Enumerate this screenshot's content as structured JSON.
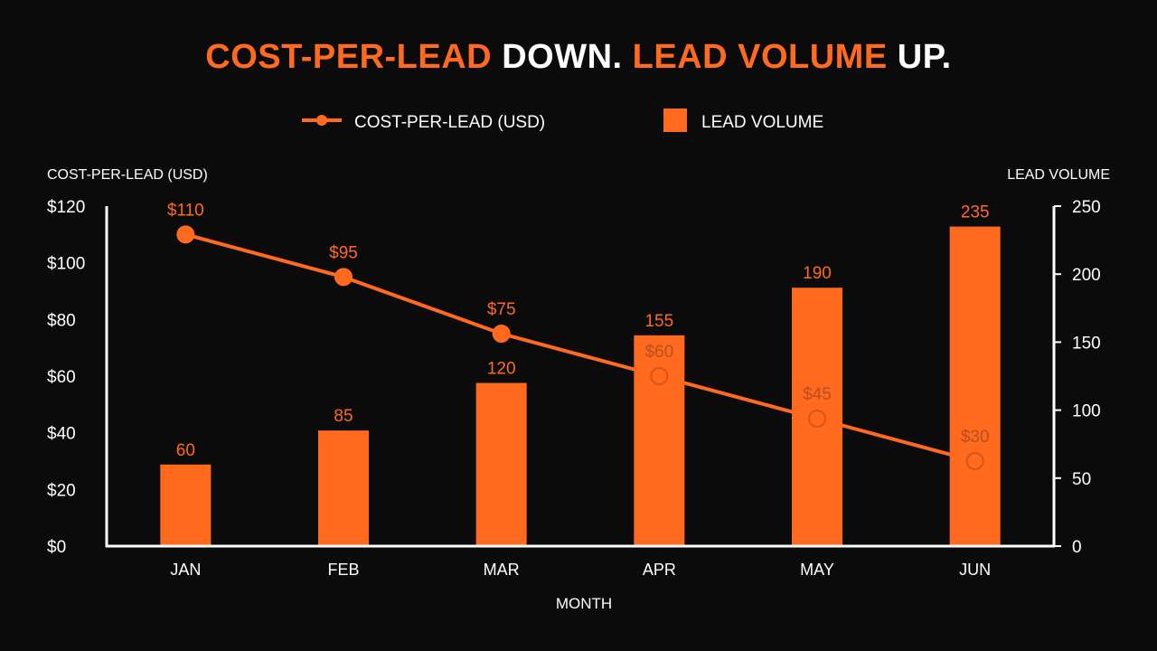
{
  "title": {
    "part1": "COST-PER-LEAD",
    "part2": " DOWN. ",
    "part3": "LEAD VOLUME",
    "part4": " UP."
  },
  "colors": {
    "background": "#0b0b0b",
    "accent": "#ff6a1f",
    "text": "#ffffff",
    "axis": "#ffffff"
  },
  "chart_data": {
    "type": "bar",
    "categories": [
      "JAN",
      "FEB",
      "MAR",
      "APR",
      "MAY",
      "JUN"
    ],
    "xlabel": "MONTH",
    "legend_position": "top-center",
    "grid": false,
    "series": [
      {
        "name": "COST-PER-LEAD (USD)",
        "type": "line",
        "axis": "left",
        "values": [
          110,
          95,
          75,
          60,
          45,
          30
        ],
        "labels": [
          "$110",
          "$95",
          "$75",
          "$60",
          "$45",
          "$30"
        ]
      },
      {
        "name": "LEAD VOLUME",
        "type": "bar",
        "axis": "right",
        "values": [
          60,
          85,
          120,
          155,
          190,
          235
        ],
        "labels": [
          "60",
          "85",
          "120",
          "155",
          "190",
          "235"
        ]
      }
    ],
    "y_left": {
      "label": "COST-PER-LEAD (USD)",
      "range": [
        0,
        120
      ],
      "ticks": [
        0,
        20,
        40,
        60,
        80,
        100,
        120
      ],
      "tick_labels": [
        "$0",
        "$20",
        "$40",
        "$60",
        "$80",
        "$100",
        "$120"
      ]
    },
    "y_right": {
      "label": "LEAD VOLUME",
      "range": [
        0,
        250
      ],
      "ticks": [
        0,
        50,
        100,
        150,
        200,
        250
      ],
      "tick_labels": [
        "0",
        "50",
        "100",
        "150",
        "200",
        "250"
      ]
    }
  }
}
